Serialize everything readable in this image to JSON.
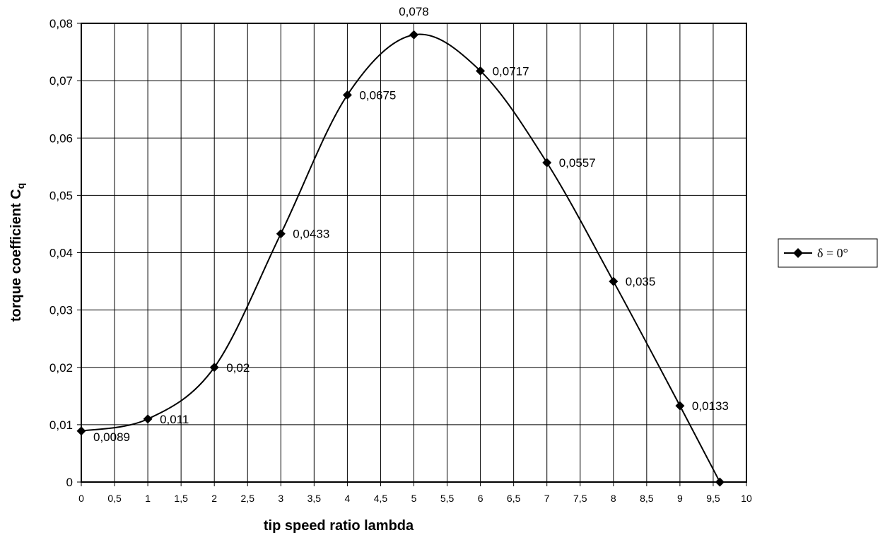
{
  "chart_data": {
    "type": "line",
    "title": "",
    "xlabel": "tip speed ratio lambda",
    "ylabel_main": "torque coefficient C",
    "ylabel_sub": "q",
    "xlim": [
      0,
      10
    ],
    "ylim": [
      0,
      0.08
    ],
    "x_ticks": [
      "0",
      "0,5",
      "1",
      "1,5",
      "2",
      "2,5",
      "3",
      "3,5",
      "4",
      "4,5",
      "5",
      "5,5",
      "6",
      "6,5",
      "7",
      "7,5",
      "8",
      "8,5",
      "9",
      "9,5",
      "10"
    ],
    "y_ticks": [
      "0",
      "0,01",
      "0,02",
      "0,03",
      "0,04",
      "0,05",
      "0,06",
      "0,07",
      "0,08"
    ],
    "grid": true,
    "legend_position": "right",
    "series": [
      {
        "name": "δ = 0°",
        "color": "#000000",
        "marker": "diamond",
        "smooth": true,
        "points": [
          {
            "x": 0,
            "y": 0.0089,
            "label": "0,0089"
          },
          {
            "x": 1,
            "y": 0.011,
            "label": "0,011"
          },
          {
            "x": 2,
            "y": 0.02,
            "label": "0,02"
          },
          {
            "x": 3,
            "y": 0.0433,
            "label": "0,0433"
          },
          {
            "x": 4,
            "y": 0.0675,
            "label": "0,0675"
          },
          {
            "x": 5,
            "y": 0.078,
            "label": "0,078"
          },
          {
            "x": 6,
            "y": 0.0717,
            "label": "0,0717"
          },
          {
            "x": 7,
            "y": 0.0557,
            "label": "0,0557"
          },
          {
            "x": 8,
            "y": 0.035,
            "label": "0,035"
          },
          {
            "x": 9,
            "y": 0.0133,
            "label": "0,0133"
          },
          {
            "x": 9.6,
            "y": 0,
            "label": ""
          }
        ]
      }
    ]
  }
}
